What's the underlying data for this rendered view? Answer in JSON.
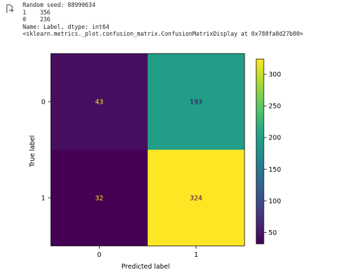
{
  "output": {
    "icon": "output-arrow-icon",
    "lines": [
      "Random seed: 88990634",
      "1    356",
      "0    236",
      "Name: Label, dtype: int64",
      "<sklearn.metrics._plot.confusion_matrix.ConfusionMatrixDisplay at 0x788fa8d27b80>"
    ]
  },
  "chart_data": {
    "type": "heatmap",
    "title": "",
    "xlabel": "Predicted label",
    "ylabel": "True label",
    "x_categories": [
      "0",
      "1"
    ],
    "y_categories": [
      "0",
      "1"
    ],
    "matrix": [
      [
        43,
        193
      ],
      [
        32,
        324
      ]
    ],
    "colormap": "viridis",
    "colorbar": {
      "min": 32,
      "max": 324,
      "ticks": [
        50,
        100,
        150,
        200,
        250,
        300
      ]
    },
    "colors": {
      "low": "#440154",
      "high": "#fde725",
      "text_on_dark": "#fde725",
      "text_on_light": "#440154"
    }
  }
}
